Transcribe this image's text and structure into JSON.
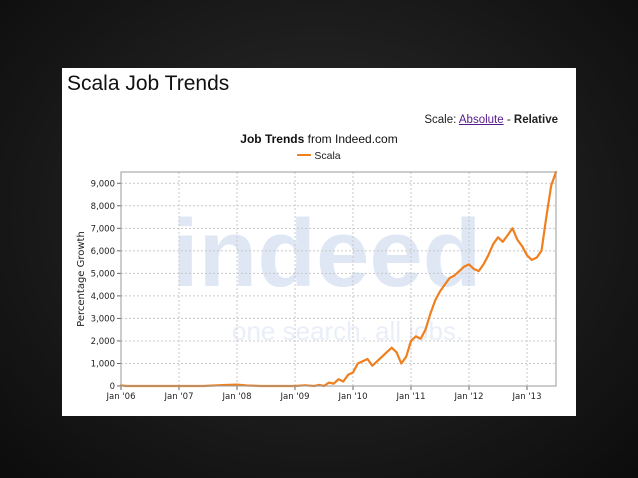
{
  "page": {
    "title": "Scala Job Trends",
    "scale_label": "Scale:",
    "scale_absolute": "Absolute",
    "scale_separator": "-",
    "scale_relative": "Relative"
  },
  "chart_data": {
    "type": "line",
    "title_bold": "Job Trends",
    "title_rest": "from Indeed.com",
    "ylabel": "Percentage Growth",
    "xlabel": "",
    "watermark": {
      "brand": "indeed",
      "tagline": "one search. all jobs."
    },
    "series_color": "#f07f1e",
    "ylim": [
      0,
      9500
    ],
    "xlim": [
      "2006-01",
      "2013-07"
    ],
    "y_ticks": [
      "0",
      "1,000",
      "2,000",
      "3,000",
      "4,000",
      "5,000",
      "6,000",
      "7,000",
      "8,000",
      "9,000"
    ],
    "x_ticks": [
      "Jan '06",
      "Jan '07",
      "Jan '08",
      "Jan '09",
      "Jan '10",
      "Jan '11",
      "Jan '12",
      "Jan '13"
    ],
    "grid": true,
    "legend": "top-center",
    "series": [
      {
        "name": "Scala",
        "color": "#f07f1e",
        "points": [
          [
            "2006-01",
            30
          ],
          [
            "2006-02",
            0
          ],
          [
            "2006-06",
            0
          ],
          [
            "2007-01",
            0
          ],
          [
            "2007-06",
            0
          ],
          [
            "2007-10",
            40
          ],
          [
            "2008-01",
            60
          ],
          [
            "2008-03",
            20
          ],
          [
            "2008-06",
            0
          ],
          [
            "2008-10",
            0
          ],
          [
            "2009-01",
            0
          ],
          [
            "2009-03",
            30
          ],
          [
            "2009-05",
            0
          ],
          [
            "2009-06",
            50
          ],
          [
            "2009-07",
            0
          ],
          [
            "2009-08",
            150
          ],
          [
            "2009-09",
            100
          ],
          [
            "2009-10",
            300
          ],
          [
            "2009-11",
            200
          ],
          [
            "2009-12",
            500
          ],
          [
            "2010-01",
            600
          ],
          [
            "2010-02",
            1000
          ],
          [
            "2010-03",
            1100
          ],
          [
            "2010-04",
            1200
          ],
          [
            "2010-05",
            900
          ],
          [
            "2010-06",
            1100
          ],
          [
            "2010-07",
            1300
          ],
          [
            "2010-08",
            1500
          ],
          [
            "2010-09",
            1700
          ],
          [
            "2010-10",
            1500
          ],
          [
            "2010-11",
            1000
          ],
          [
            "2010-12",
            1300
          ],
          [
            "2011-01",
            2000
          ],
          [
            "2011-02",
            2200
          ],
          [
            "2011-03",
            2100
          ],
          [
            "2011-04",
            2500
          ],
          [
            "2011-05",
            3200
          ],
          [
            "2011-06",
            3800
          ],
          [
            "2011-07",
            4200
          ],
          [
            "2011-08",
            4500
          ],
          [
            "2011-09",
            4800
          ],
          [
            "2011-10",
            4900
          ],
          [
            "2011-11",
            5100
          ],
          [
            "2011-12",
            5300
          ],
          [
            "2012-01",
            5400
          ],
          [
            "2012-02",
            5200
          ],
          [
            "2012-03",
            5100
          ],
          [
            "2012-04",
            5400
          ],
          [
            "2012-05",
            5800
          ],
          [
            "2012-06",
            6300
          ],
          [
            "2012-07",
            6600
          ],
          [
            "2012-08",
            6400
          ],
          [
            "2012-09",
            6700
          ],
          [
            "2012-10",
            7000
          ],
          [
            "2012-11",
            6500
          ],
          [
            "2012-12",
            6200
          ],
          [
            "2013-01",
            5800
          ],
          [
            "2013-02",
            5600
          ],
          [
            "2013-03",
            5700
          ],
          [
            "2013-04",
            6000
          ],
          [
            "2013-05",
            7500
          ],
          [
            "2013-06",
            8900
          ],
          [
            "2013-07",
            9500
          ]
        ]
      }
    ]
  }
}
